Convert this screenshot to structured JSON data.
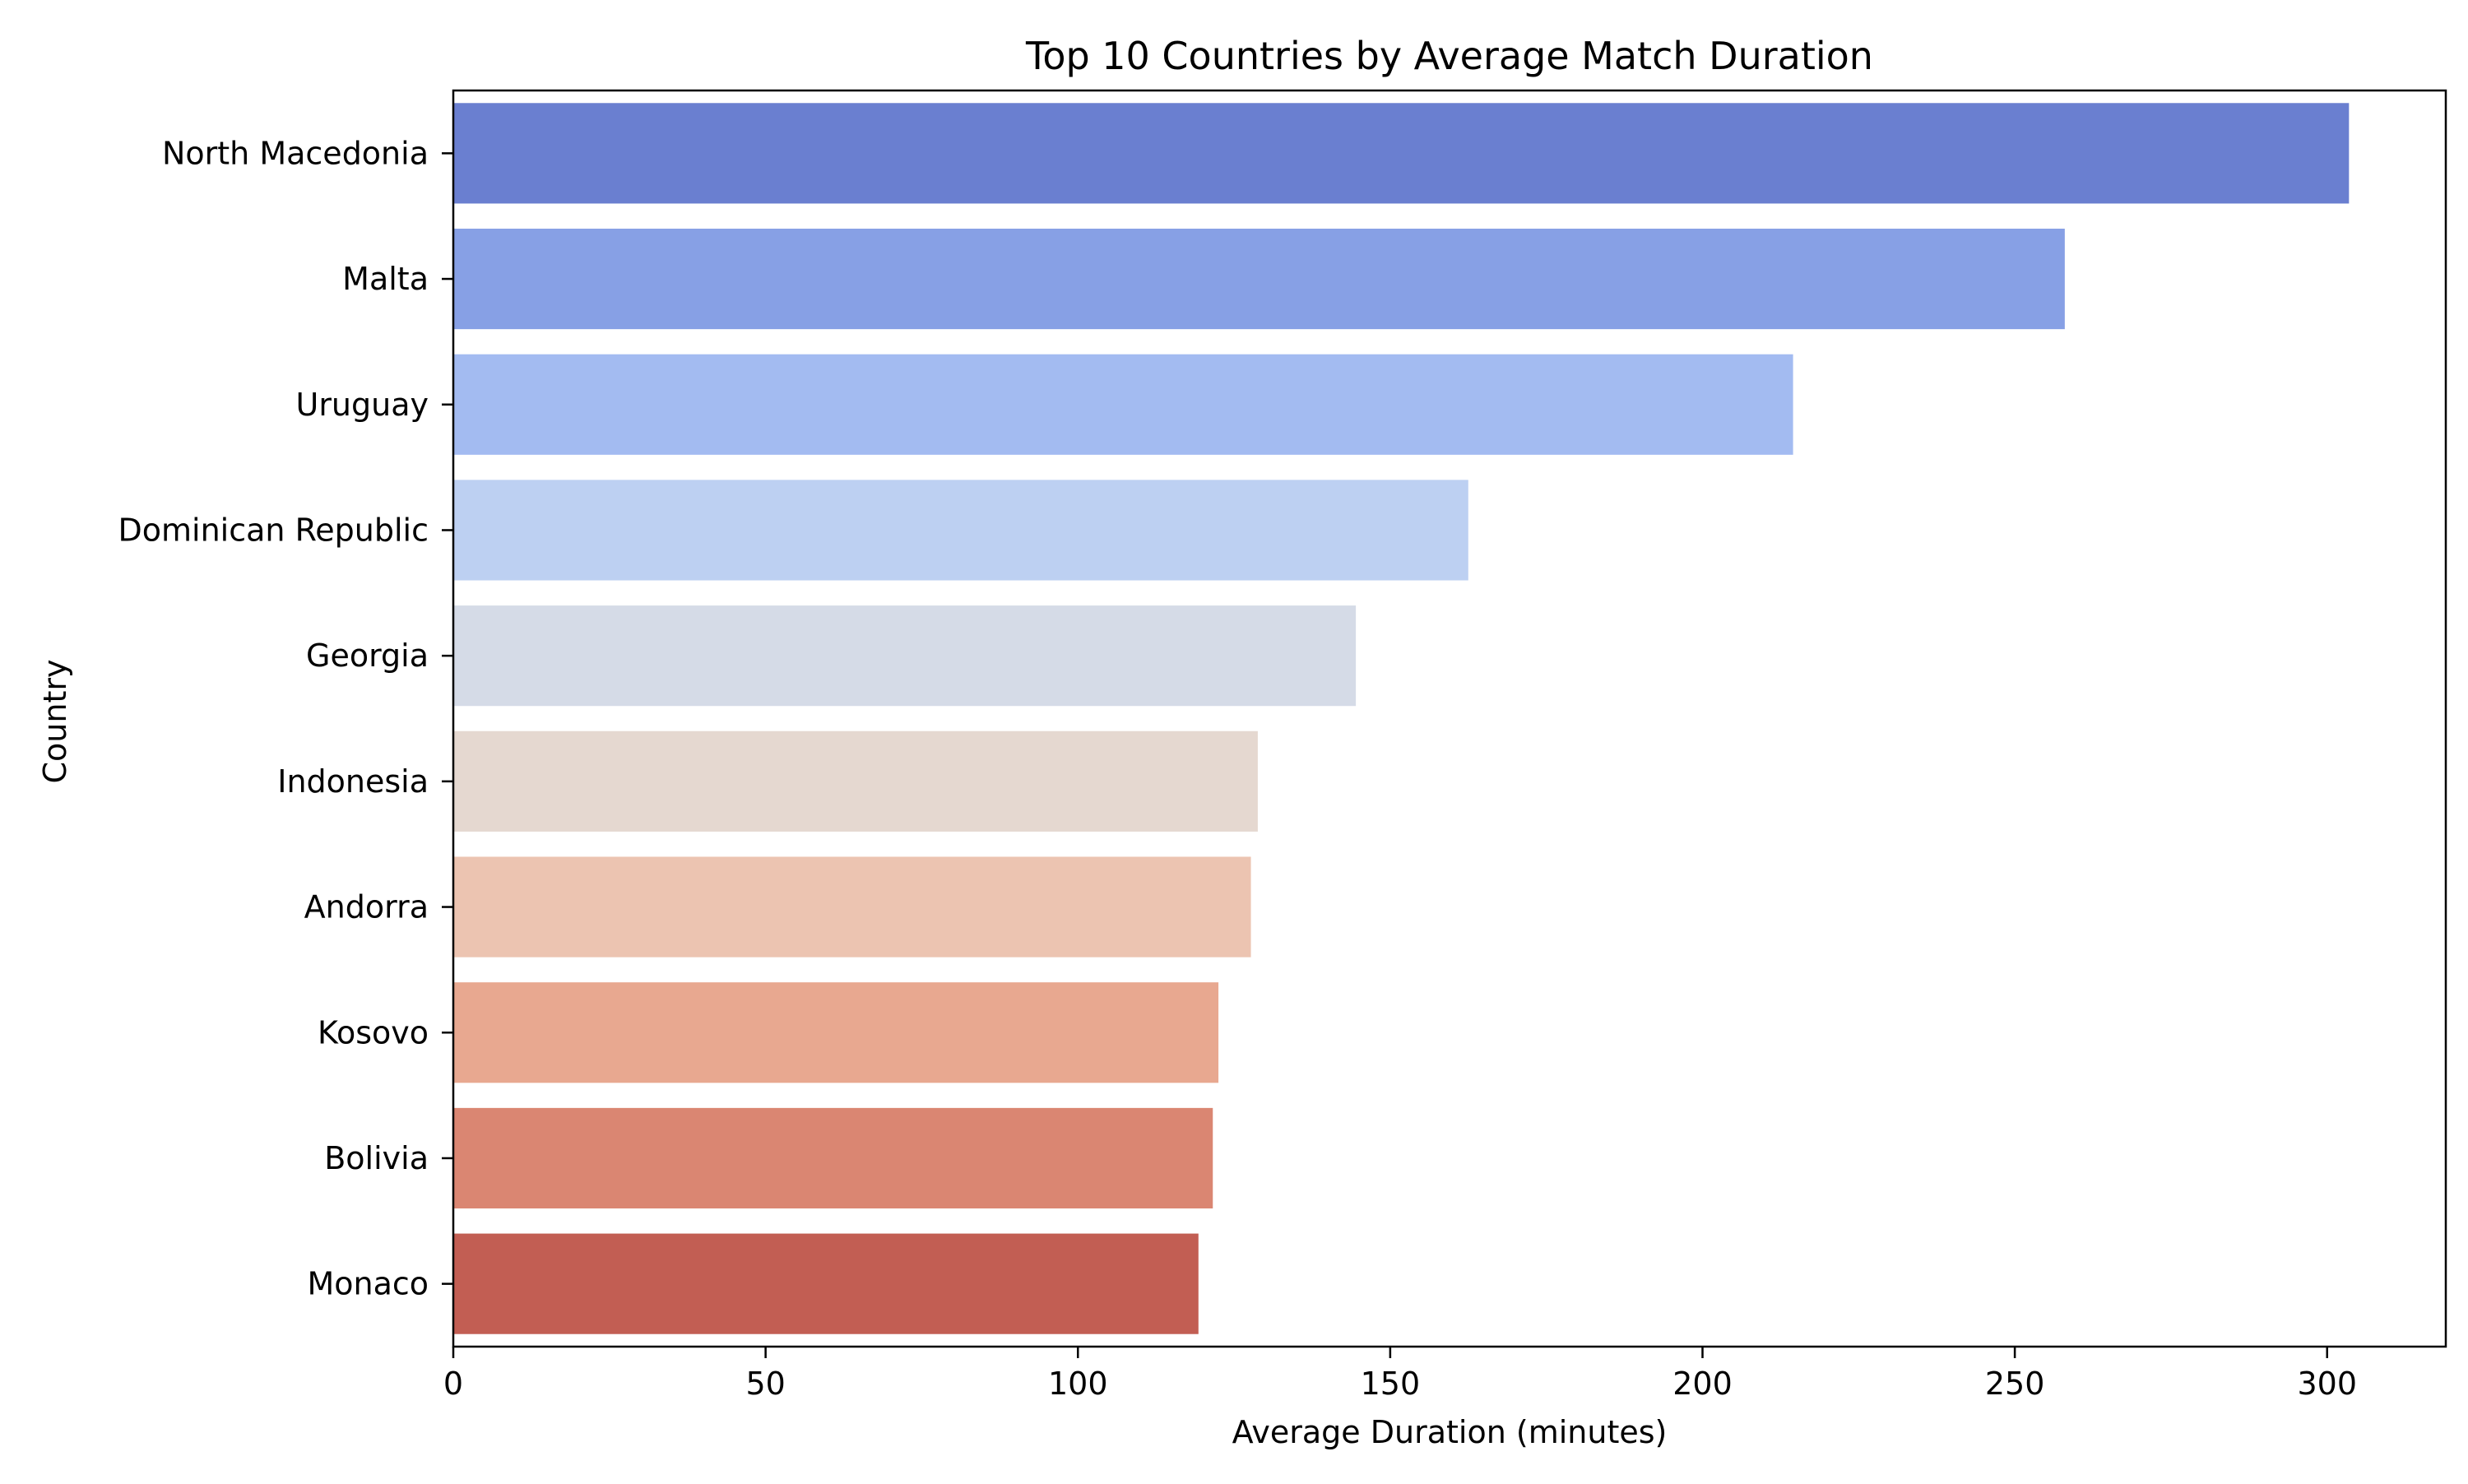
{
  "chart_data": {
    "type": "bar",
    "orientation": "horizontal",
    "title": "Top 10 Countries by Average Match Duration",
    "xlabel": "Average Duration (minutes)",
    "ylabel": "Country",
    "categories": [
      "North Macedonia",
      "Malta",
      "Uruguay",
      "Dominican Republic",
      "Georgia",
      "Indonesia",
      "Andorra",
      "Kosovo",
      "Bolivia",
      "Monaco"
    ],
    "values": [
      303.5,
      258.0,
      214.5,
      162.5,
      144.5,
      128.8,
      127.7,
      122.5,
      121.6,
      119.3
    ],
    "colors": [
      "#6a7fd0",
      "#87a0e5",
      "#a3bbf1",
      "#bdd0f2",
      "#d5dbe7",
      "#e5d8d0",
      "#ecc4b1",
      "#e8a890",
      "#da8672",
      "#c25e53"
    ],
    "xlim": [
      0,
      319
    ],
    "xticks": [
      0,
      50,
      100,
      150,
      200,
      250,
      300
    ],
    "grid": false,
    "legend": "none"
  }
}
